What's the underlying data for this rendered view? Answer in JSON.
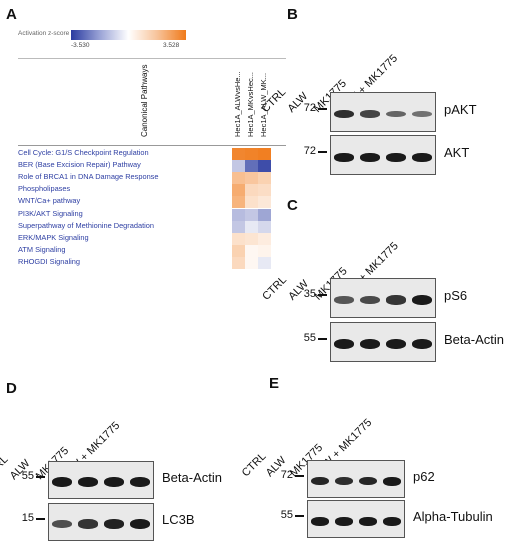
{
  "panels": {
    "a": {
      "label": "A"
    },
    "b": {
      "label": "B"
    },
    "c": {
      "label": "C"
    },
    "d": {
      "label": "D"
    },
    "e": {
      "label": "E"
    }
  },
  "heatmap": {
    "legend_title": "Activation z-score",
    "legend_min": "-3.530",
    "legend_max": "3.528",
    "color_low": "#2a3ba0",
    "color_high": "#f07a1a",
    "column_header": "Canonical Pathways",
    "columns": [
      "Hec1A_ALWvsHe...",
      "Hec1A_MKvsHec...",
      "Hec1A_ALW_MK..."
    ],
    "rows": [
      "Cell Cycle: G1/S Checkpoint Regulation",
      "BER (Base Excision Repair) Pathway",
      "Role of BRCA1 in DNA Damage Response",
      "Phospholipases",
      "WNT/Ca+ pathway",
      "PI3K/AKT Signaling",
      "Superpathway of Methionine Degradation",
      "ERK/MAPK Signaling",
      "ATM Signaling",
      "RHOGDI Signaling"
    ],
    "values": [
      [
        3.2,
        3.3,
        3.4
      ],
      [
        -1.0,
        -2.6,
        -3.2
      ],
      [
        1.7,
        1.5,
        1.2
      ],
      [
        2.2,
        1.0,
        0.9
      ],
      [
        2.0,
        0.8,
        0.6
      ],
      [
        -1.2,
        -1.0,
        -1.6
      ],
      [
        -1.0,
        -0.4,
        -0.7
      ],
      [
        0.8,
        0.7,
        0.5
      ],
      [
        1.2,
        0.2,
        0.3
      ],
      [
        1.0,
        0.2,
        -0.4
      ]
    ]
  },
  "blots": {
    "b": {
      "lanes": [
        "CTRL",
        "ALW",
        "MK1775",
        "ALW + MK1775"
      ],
      "rows": [
        {
          "marker": "72",
          "label": "pAKT",
          "intensity": [
            0.85,
            0.7,
            0.45,
            0.35
          ]
        },
        {
          "marker": "72",
          "label": "AKT",
          "intensity": [
            1.0,
            1.0,
            1.0,
            1.0
          ]
        }
      ]
    },
    "c": {
      "lanes": [
        "CTRL",
        "ALW",
        "MK1775",
        "ALW + MK1775"
      ],
      "rows": [
        {
          "marker": "35",
          "label": "pS6",
          "intensity": [
            0.55,
            0.65,
            0.8,
            1.0
          ]
        },
        {
          "marker": "55",
          "label": "Beta-Actin",
          "intensity": [
            1.0,
            1.0,
            1.0,
            1.0
          ]
        }
      ]
    },
    "d": {
      "lanes": [
        "CTRL",
        "ALW",
        "MK1775",
        "ALW + MK1775"
      ],
      "rows": [
        {
          "marker": "55",
          "label": "Beta-Actin",
          "intensity": [
            1.0,
            1.0,
            1.0,
            1.0
          ]
        },
        {
          "marker": "15",
          "label": "LC3B",
          "intensity": [
            0.6,
            0.8,
            0.95,
            1.0
          ]
        }
      ]
    },
    "e": {
      "lanes": [
        "CTRL",
        "ALW",
        "MK1775",
        "ALW + MK1775"
      ],
      "rows": [
        {
          "marker": "72",
          "label": "p62",
          "intensity": [
            0.9,
            0.85,
            0.9,
            1.0
          ]
        },
        {
          "marker": "55",
          "label": "Alpha-Tubulin",
          "intensity": [
            1.0,
            1.0,
            1.0,
            1.0
          ]
        }
      ]
    }
  }
}
